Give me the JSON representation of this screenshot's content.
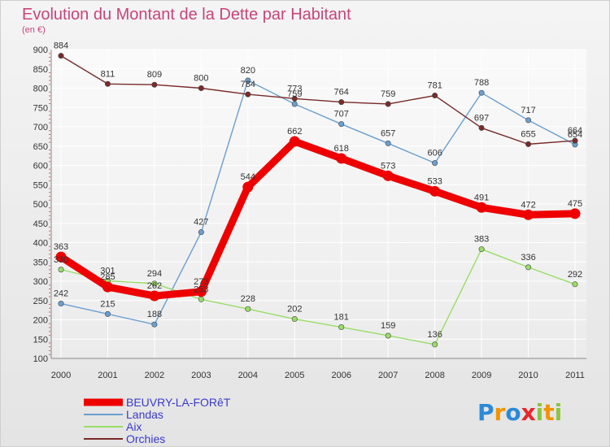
{
  "chart_data": {
    "type": "line",
    "title": "Evolution du Montant de la Dette par Habitant",
    "subtitle": "(en €)",
    "categories": [
      "2000",
      "2001",
      "2002",
      "2003",
      "2004",
      "2005",
      "2006",
      "2007",
      "2008",
      "2009",
      "2010",
      "2011"
    ],
    "ylim": [
      100,
      900
    ],
    "yticks": [
      100,
      150,
      200,
      250,
      300,
      350,
      400,
      450,
      500,
      550,
      600,
      650,
      700,
      750,
      800,
      850,
      900
    ],
    "grid": true,
    "legend_position": "bottom-left",
    "series": [
      {
        "name": "BEUVRY-LA-FORêT",
        "color": "#ee0000",
        "highlight": true,
        "values": [
          363,
          285,
          262,
          273,
          544,
          662,
          618,
          573,
          533,
          491,
          472,
          475
        ]
      },
      {
        "name": "Landas",
        "color": "#6a9fd0",
        "values": [
          242,
          215,
          188,
          427,
          820,
          759,
          707,
          657,
          606,
          788,
          717,
          654
        ]
      },
      {
        "name": "Aix",
        "color": "#99dd66",
        "values": [
          330,
          301,
          294,
          253,
          228,
          202,
          181,
          159,
          136,
          383,
          336,
          292
        ]
      },
      {
        "name": "Orchies",
        "color": "#7a2a2a",
        "values": [
          884,
          811,
          809,
          800,
          784,
          773,
          764,
          759,
          781,
          697,
          655,
          664
        ]
      }
    ]
  },
  "logo": {
    "text": "Proxiti"
  }
}
